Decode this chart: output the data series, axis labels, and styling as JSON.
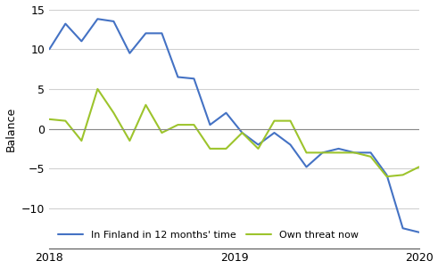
{
  "blue_y": [
    10.0,
    13.2,
    11.0,
    13.8,
    13.5,
    9.5,
    12.0,
    12.0,
    6.5,
    6.3,
    0.5,
    2.0,
    -0.5,
    -2.0,
    -0.5,
    -2.0,
    -4.8,
    -3.0,
    -2.5,
    -3.0,
    -3.0,
    -5.8,
    -12.5,
    -13.0
  ],
  "green_y": [
    1.2,
    1.0,
    -1.5,
    5.0,
    2.0,
    -1.5,
    3.0,
    -0.5,
    0.5,
    0.5,
    -2.5,
    -2.5,
    -0.5,
    -2.5,
    1.0,
    1.0,
    -3.0,
    -3.0,
    -3.0,
    -3.0,
    -3.5,
    -6.0,
    -5.8,
    -4.8
  ],
  "n_points": 24,
  "x_start": 2018.0,
  "x_end": 2020.0,
  "x_tick_values": [
    2018.0,
    2019.0,
    2020.0
  ],
  "x_tick_labels": [
    "2018",
    "2019",
    "2020"
  ],
  "ylim": [
    -15,
    15
  ],
  "yticks": [
    -10,
    -5,
    0,
    5,
    10,
    15
  ],
  "ylabel": "Balance",
  "blue_color": "#4472c4",
  "green_color": "#9dc42c",
  "blue_label": "In Finland in 12 months' time",
  "green_label": "Own threat now",
  "zero_line_color": "#888888",
  "grid_color": "#d0d0d0",
  "background_color": "#ffffff",
  "spine_color": "#555555",
  "legend_fontsize": 8,
  "tick_fontsize": 9,
  "ylabel_fontsize": 9,
  "linewidth": 1.5
}
